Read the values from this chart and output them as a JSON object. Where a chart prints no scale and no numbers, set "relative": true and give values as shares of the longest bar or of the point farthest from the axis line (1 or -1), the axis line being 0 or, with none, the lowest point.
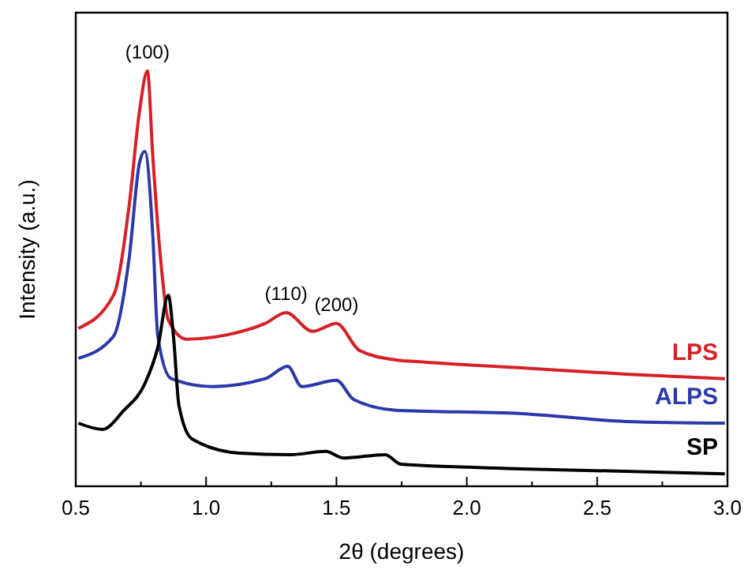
{
  "chart_data": {
    "type": "line",
    "xlabel": "2θ (degrees)",
    "ylabel": "Intensity (a.u.)",
    "relative": true,
    "legend": false,
    "grid": false,
    "marker": "none",
    "line_style": "solid",
    "xlim": [
      0.5,
      3.0
    ],
    "xticks": [
      0.5,
      {
        "value": 0.75,
        "label": null
      },
      {
        "value": 1,
        "label": "1.0"
      },
      {
        "value": 1.25,
        "label": null
      },
      {
        "value": 1.5,
        "label": "1.5"
      },
      {
        "value": 1.75,
        "label": null
      },
      {
        "value": 2,
        "label": "2.0"
      },
      {
        "value": 2.25,
        "label": null
      },
      {
        "value": 2.5,
        "label": "2.5"
      },
      {
        "value": 2.75,
        "label": null
      },
      {
        "value": 3,
        "label": "3.0"
      }
    ],
    "annotations": [
      {
        "text": "(100)",
        "x": 0.775,
        "y": 1.0
      },
      {
        "text": "(110)",
        "x": 1.307,
        "y": 0.418
      },
      {
        "text": "(200)",
        "x": 1.5,
        "y": 0.392
      }
    ],
    "series": [
      {
        "name": "LPS",
        "color": "#d62027",
        "x": [
          0.51,
          0.645,
          0.705,
          0.745,
          0.775,
          0.795,
          0.825,
          0.855,
          0.925,
          1.085,
          1.227,
          1.307,
          1.408,
          1.5,
          1.588,
          1.729,
          1.807,
          2.21,
          2.61,
          2.99
        ],
        "values": [
          0.38,
          0.46,
          0.677,
          0.905,
          1.0,
          0.8,
          0.55,
          0.4,
          0.354,
          0.365,
          0.392,
          0.418,
          0.373,
          0.392,
          0.327,
          0.304,
          0.3,
          0.285,
          0.27,
          0.259
        ]
      },
      {
        "name": "ALPS",
        "color": "#2b3aa8",
        "x": [
          0.51,
          0.645,
          0.705,
          0.745,
          0.765,
          0.795,
          0.815,
          0.866,
          1.024,
          1.227,
          1.313,
          1.367,
          1.5,
          1.566,
          1.729,
          2.21,
          2.61,
          2.99
        ],
        "values": [
          0.308,
          0.361,
          0.55,
          0.78,
          0.806,
          0.61,
          0.36,
          0.259,
          0.24,
          0.259,
          0.289,
          0.24,
          0.255,
          0.209,
          0.183,
          0.175,
          0.156,
          0.152
        ]
      },
      {
        "name": "SP",
        "color": "#000000",
        "x": [
          0.51,
          0.602,
          0.685,
          0.765,
          0.815,
          0.855,
          0.875,
          0.896,
          0.946,
          1.127,
          1.325,
          1.458,
          1.528,
          1.687,
          1.747,
          2.21,
          2.99
        ],
        "values": [
          0.152,
          0.137,
          0.183,
          0.247,
          0.335,
          0.46,
          0.36,
          0.194,
          0.114,
          0.08,
          0.076,
          0.084,
          0.068,
          0.076,
          0.053,
          0.042,
          0.03
        ]
      }
    ]
  }
}
